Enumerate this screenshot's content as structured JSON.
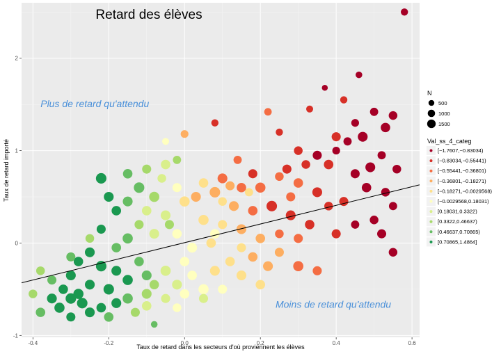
{
  "chart_data": {
    "type": "scatter",
    "title": "Retard des élèves",
    "xlabel": "Taux de retard dans les secteurs d'où proviennent les élèves",
    "ylabel": "Taux de retard importé",
    "xlim": [
      -0.43,
      0.62
    ],
    "ylim": [
      -1.02,
      2.6
    ],
    "x_ticks": [
      -0.4,
      -0.2,
      0.0,
      0.2,
      0.4,
      0.6
    ],
    "x_tick_labels": [
      "-0.4",
      "-0.2",
      "0.0",
      "0.2",
      "0.4",
      "0.6"
    ],
    "y_ticks": [
      -1,
      0,
      1,
      2
    ],
    "y_tick_labels": [
      "-1",
      "0",
      "1",
      "2"
    ],
    "grid": true,
    "regression_line": {
      "x": [
        -0.43,
        0.62
      ],
      "y": [
        -0.43,
        0.63
      ]
    },
    "annotations": [
      {
        "text": "Plus de retard qu'attendu",
        "x": -0.38,
        "y": 1.47
      },
      {
        "text": "Moins de retard qu'attendu",
        "x": 0.24,
        "y": -0.7
      }
    ],
    "size_legend": {
      "title": "N",
      "entries": [
        {
          "label": "500",
          "value": 500
        },
        {
          "label": "1000",
          "value": 1000
        },
        {
          "label": "1500",
          "value": 1500
        }
      ]
    },
    "color_legend": {
      "title": "Val_ss_4_categ",
      "entries": [
        {
          "label": "[−1.7607,−0.83034)",
          "color": "#a50026"
        },
        {
          "label": "[−0.83034,−0.55441)",
          "color": "#d73027"
        },
        {
          "label": "[−0.55441,−0.36801)",
          "color": "#f46d43"
        },
        {
          "label": "[−0.36801,−0.18271)",
          "color": "#fdae61"
        },
        {
          "label": "[−0.18271,−0.0029568)",
          "color": "#fee08b"
        },
        {
          "label": "[−0.0029568,0.18031)",
          "color": "#ffffbf"
        },
        {
          "label": "[0.18031,0.3322)",
          "color": "#d9ef8b"
        },
        {
          "label": "[0.3322,0.46637)",
          "color": "#a6d96a"
        },
        {
          "label": "[0.46637,0.70865)",
          "color": "#66bd63"
        },
        {
          "label": "[0.70865,1.4864]",
          "color": "#1a9850"
        }
      ]
    },
    "points": [
      {
        "x": 0.58,
        "y": 2.5,
        "n": 400,
        "c": 0
      },
      {
        "x": 0.46,
        "y": 1.82,
        "n": 300,
        "c": 0
      },
      {
        "x": 0.37,
        "y": 1.68,
        "n": 200,
        "c": 0
      },
      {
        "x": 0.42,
        "y": 1.55,
        "n": 400,
        "c": 1
      },
      {
        "x": 0.5,
        "y": 1.42,
        "n": 600,
        "c": 0
      },
      {
        "x": 0.55,
        "y": 1.38,
        "n": 700,
        "c": 0
      },
      {
        "x": 0.53,
        "y": 1.25,
        "n": 900,
        "c": 0
      },
      {
        "x": 0.45,
        "y": 1.3,
        "n": 500,
        "c": 0
      },
      {
        "x": 0.47,
        "y": 1.15,
        "n": 1000,
        "c": 0
      },
      {
        "x": 0.4,
        "y": 1.15,
        "n": 800,
        "c": 1
      },
      {
        "x": 0.43,
        "y": 1.1,
        "n": 600,
        "c": 0
      },
      {
        "x": 0.33,
        "y": 1.45,
        "n": 350,
        "c": 1
      },
      {
        "x": 0.22,
        "y": 1.42,
        "n": 450,
        "c": 2
      },
      {
        "x": 0.08,
        "y": 1.3,
        "n": 400,
        "c": 1
      },
      {
        "x": 0.0,
        "y": 1.18,
        "n": 500,
        "c": 3
      },
      {
        "x": -0.05,
        "y": 1.1,
        "n": 350,
        "c": 5
      },
      {
        "x": 0.3,
        "y": 1.0,
        "n": 700,
        "c": 1
      },
      {
        "x": 0.35,
        "y": 0.95,
        "n": 800,
        "c": 0
      },
      {
        "x": 0.38,
        "y": 0.85,
        "n": 900,
        "c": 1
      },
      {
        "x": 0.52,
        "y": 0.95,
        "n": 600,
        "c": 0
      },
      {
        "x": 0.56,
        "y": 0.8,
        "n": 700,
        "c": 0
      },
      {
        "x": 0.49,
        "y": 0.82,
        "n": 1000,
        "c": 0
      },
      {
        "x": 0.45,
        "y": 0.75,
        "n": 800,
        "c": 0
      },
      {
        "x": 0.48,
        "y": 0.6,
        "n": 900,
        "c": 0
      },
      {
        "x": 0.53,
        "y": 0.55,
        "n": 700,
        "c": 0
      },
      {
        "x": 0.55,
        "y": 0.4,
        "n": 600,
        "c": 0
      },
      {
        "x": 0.42,
        "y": 0.45,
        "n": 800,
        "c": 1
      },
      {
        "x": 0.5,
        "y": 0.25,
        "n": 700,
        "c": 0
      },
      {
        "x": 0.52,
        "y": 0.1,
        "n": 800,
        "c": 0
      },
      {
        "x": 0.55,
        "y": -0.1,
        "n": 700,
        "c": 0
      },
      {
        "x": 0.45,
        "y": 0.2,
        "n": 600,
        "c": 0
      },
      {
        "x": 0.4,
        "y": 0.1,
        "n": 800,
        "c": 1
      },
      {
        "x": 0.35,
        "y": 0.55,
        "n": 1000,
        "c": 1
      },
      {
        "x": 0.3,
        "y": 0.65,
        "n": 900,
        "c": 2
      },
      {
        "x": 0.27,
        "y": 0.8,
        "n": 800,
        "c": 1
      },
      {
        "x": 0.25,
        "y": 0.72,
        "n": 700,
        "c": 2
      },
      {
        "x": 0.2,
        "y": 0.6,
        "n": 1100,
        "c": 2
      },
      {
        "x": 0.18,
        "y": 0.75,
        "n": 800,
        "c": 1
      },
      {
        "x": 0.15,
        "y": 0.6,
        "n": 900,
        "c": 2
      },
      {
        "x": 0.12,
        "y": 0.62,
        "n": 800,
        "c": 3
      },
      {
        "x": 0.1,
        "y": 0.7,
        "n": 1000,
        "c": 2
      },
      {
        "x": 0.08,
        "y": 0.55,
        "n": 1200,
        "c": 3
      },
      {
        "x": 0.05,
        "y": 0.65,
        "n": 900,
        "c": 4
      },
      {
        "x": 0.03,
        "y": 0.5,
        "n": 1000,
        "c": 3
      },
      {
        "x": 0.0,
        "y": 0.45,
        "n": 1100,
        "c": 4
      },
      {
        "x": -0.02,
        "y": 0.6,
        "n": 800,
        "c": 5
      },
      {
        "x": 0.13,
        "y": 0.4,
        "n": 1000,
        "c": 3
      },
      {
        "x": 0.18,
        "y": 0.35,
        "n": 900,
        "c": 2
      },
      {
        "x": 0.23,
        "y": 0.4,
        "n": 1200,
        "c": 1
      },
      {
        "x": 0.28,
        "y": 0.3,
        "n": 1000,
        "c": 1
      },
      {
        "x": 0.33,
        "y": 0.2,
        "n": 900,
        "c": 1
      },
      {
        "x": 0.3,
        "y": 0.05,
        "n": 800,
        "c": 2
      },
      {
        "x": 0.25,
        "y": 0.1,
        "n": 700,
        "c": 2
      },
      {
        "x": 0.2,
        "y": 0.05,
        "n": 900,
        "c": 3
      },
      {
        "x": 0.15,
        "y": 0.15,
        "n": 1000,
        "c": 3
      },
      {
        "x": 0.1,
        "y": 0.2,
        "n": 800,
        "c": 4
      },
      {
        "x": 0.05,
        "y": 0.25,
        "n": 1100,
        "c": 4
      },
      {
        "x": 0.07,
        "y": 0.0,
        "n": 900,
        "c": 4
      },
      {
        "x": 0.02,
        "y": -0.05,
        "n": 1000,
        "c": 5
      },
      {
        "x": -0.02,
        "y": 0.1,
        "n": 900,
        "c": 5
      },
      {
        "x": -0.05,
        "y": 0.3,
        "n": 1000,
        "c": 6
      },
      {
        "x": -0.08,
        "y": 0.5,
        "n": 1100,
        "c": 7
      },
      {
        "x": -0.1,
        "y": 0.35,
        "n": 900,
        "c": 6
      },
      {
        "x": -0.12,
        "y": 0.6,
        "n": 1200,
        "c": 8
      },
      {
        "x": -0.15,
        "y": 0.45,
        "n": 1000,
        "c": 8
      },
      {
        "x": -0.18,
        "y": 0.35,
        "n": 900,
        "c": 9
      },
      {
        "x": -0.2,
        "y": 0.5,
        "n": 1000,
        "c": 9
      },
      {
        "x": -0.22,
        "y": 0.7,
        "n": 1200,
        "c": 9
      },
      {
        "x": -0.15,
        "y": 0.75,
        "n": 900,
        "c": 8
      },
      {
        "x": -0.1,
        "y": 0.8,
        "n": 800,
        "c": 7
      },
      {
        "x": -0.05,
        "y": 0.85,
        "n": 900,
        "c": 6
      },
      {
        "x": -0.08,
        "y": 0.1,
        "n": 1000,
        "c": 6
      },
      {
        "x": -0.12,
        "y": 0.2,
        "n": 800,
        "c": 7
      },
      {
        "x": -0.15,
        "y": 0.05,
        "n": 1100,
        "c": 8
      },
      {
        "x": -0.18,
        "y": -0.05,
        "n": 900,
        "c": 8
      },
      {
        "x": -0.22,
        "y": 0.15,
        "n": 800,
        "c": 9
      },
      {
        "x": -0.25,
        "y": -0.1,
        "n": 1000,
        "c": 9
      },
      {
        "x": -0.28,
        "y": -0.2,
        "n": 900,
        "c": 9
      },
      {
        "x": -0.3,
        "y": -0.35,
        "n": 1000,
        "c": 9
      },
      {
        "x": -0.22,
        "y": -0.25,
        "n": 1200,
        "c": 9
      },
      {
        "x": -0.18,
        "y": -0.3,
        "n": 1000,
        "c": 9
      },
      {
        "x": -0.15,
        "y": -0.4,
        "n": 1100,
        "c": 9
      },
      {
        "x": -0.12,
        "y": -0.2,
        "n": 900,
        "c": 8
      },
      {
        "x": -0.1,
        "y": -0.35,
        "n": 1000,
        "c": 8
      },
      {
        "x": -0.08,
        "y": -0.45,
        "n": 900,
        "c": 7
      },
      {
        "x": -0.05,
        "y": -0.3,
        "n": 1100,
        "c": 6
      },
      {
        "x": -0.02,
        "y": -0.45,
        "n": 1000,
        "c": 6
      },
      {
        "x": 0.02,
        "y": -0.35,
        "n": 900,
        "c": 5
      },
      {
        "x": 0.05,
        "y": -0.5,
        "n": 1100,
        "c": 5
      },
      {
        "x": 0.08,
        "y": -0.3,
        "n": 1000,
        "c": 4
      },
      {
        "x": 0.12,
        "y": -0.2,
        "n": 900,
        "c": 4
      },
      {
        "x": 0.15,
        "y": -0.35,
        "n": 1000,
        "c": 4
      },
      {
        "x": 0.18,
        "y": -0.15,
        "n": 900,
        "c": 3
      },
      {
        "x": 0.22,
        "y": -0.25,
        "n": 1000,
        "c": 3
      },
      {
        "x": 0.25,
        "y": -0.1,
        "n": 800,
        "c": 3
      },
      {
        "x": 0.3,
        "y": -0.25,
        "n": 1100,
        "c": 2
      },
      {
        "x": 0.35,
        "y": -0.3,
        "n": 800,
        "c": 2
      },
      {
        "x": 0.2,
        "y": -0.45,
        "n": 900,
        "c": 4
      },
      {
        "x": 0.1,
        "y": -0.5,
        "n": 800,
        "c": 5
      },
      {
        "x": -0.02,
        "y": -0.7,
        "n": 700,
        "c": 5
      },
      {
        "x": 0.05,
        "y": -0.6,
        "n": 800,
        "c": 6
      },
      {
        "x": -0.1,
        "y": -0.55,
        "n": 1000,
        "c": 7
      },
      {
        "x": -0.15,
        "y": -0.6,
        "n": 1100,
        "c": 8
      },
      {
        "x": -0.2,
        "y": -0.5,
        "n": 1200,
        "c": 9
      },
      {
        "x": -0.25,
        "y": -0.45,
        "n": 1000,
        "c": 9
      },
      {
        "x": -0.28,
        "y": -0.55,
        "n": 1100,
        "c": 9
      },
      {
        "x": -0.3,
        "y": -0.6,
        "n": 1200,
        "c": 9
      },
      {
        "x": -0.32,
        "y": -0.5,
        "n": 900,
        "c": 9
      },
      {
        "x": -0.35,
        "y": -0.6,
        "n": 1000,
        "c": 9
      },
      {
        "x": -0.33,
        "y": -0.7,
        "n": 1100,
        "c": 9
      },
      {
        "x": -0.27,
        "y": -0.65,
        "n": 1200,
        "c": 9
      },
      {
        "x": -0.25,
        "y": -0.75,
        "n": 1000,
        "c": 9
      },
      {
        "x": -0.22,
        "y": -0.7,
        "n": 900,
        "c": 9
      },
      {
        "x": -0.18,
        "y": -0.65,
        "n": 1000,
        "c": 9
      },
      {
        "x": -0.38,
        "y": -0.75,
        "n": 900,
        "c": 8
      },
      {
        "x": -0.3,
        "y": -0.8,
        "n": 800,
        "c": 9
      },
      {
        "x": -0.35,
        "y": -0.4,
        "n": 800,
        "c": 8
      },
      {
        "x": -0.38,
        "y": -0.3,
        "n": 700,
        "c": 7
      },
      {
        "x": -0.3,
        "y": -0.15,
        "n": 800,
        "c": 8
      },
      {
        "x": -0.25,
        "y": 0.05,
        "n": 700,
        "c": 7
      },
      {
        "x": -0.4,
        "y": -0.55,
        "n": 700,
        "c": 7
      },
      {
        "x": -0.1,
        "y": -0.68,
        "n": 900,
        "c": 6
      },
      {
        "x": -0.05,
        "y": -0.6,
        "n": 800,
        "c": 6
      },
      {
        "x": -0.13,
        "y": -0.75,
        "n": 800,
        "c": 7
      },
      {
        "x": -0.2,
        "y": -0.8,
        "n": 900,
        "c": 8
      },
      {
        "x": -0.08,
        "y": -0.88,
        "n": 300,
        "c": 8
      },
      {
        "x": 0.0,
        "y": -0.2,
        "n": 900,
        "c": 5
      },
      {
        "x": 0.1,
        "y": 0.45,
        "n": 700,
        "c": 4
      },
      {
        "x": 0.17,
        "y": 0.55,
        "n": 600,
        "c": 4
      },
      {
        "x": -0.06,
        "y": 0.7,
        "n": 700,
        "c": 6
      },
      {
        "x": -0.02,
        "y": 0.9,
        "n": 600,
        "c": 7
      },
      {
        "x": -0.04,
        "y": 0.2,
        "n": 800,
        "c": 7
      },
      {
        "x": 0.38,
        "y": 0.4,
        "n": 700,
        "c": 1
      },
      {
        "x": 0.28,
        "y": 0.5,
        "n": 800,
        "c": 2
      },
      {
        "x": 0.32,
        "y": 0.85,
        "n": 700,
        "c": 1
      },
      {
        "x": 0.4,
        "y": 1.0,
        "n": 500,
        "c": 0
      },
      {
        "x": 0.14,
        "y": 0.9,
        "n": 600,
        "c": 2
      },
      {
        "x": 0.25,
        "y": 1.2,
        "n": 400,
        "c": 1
      },
      {
        "x": 0.08,
        "y": 0.1,
        "n": 900,
        "c": 5
      },
      {
        "x": 0.0,
        "y": -0.55,
        "n": 900,
        "c": 5
      },
      {
        "x": 0.15,
        "y": -0.05,
        "n": 800,
        "c": 4
      }
    ]
  }
}
